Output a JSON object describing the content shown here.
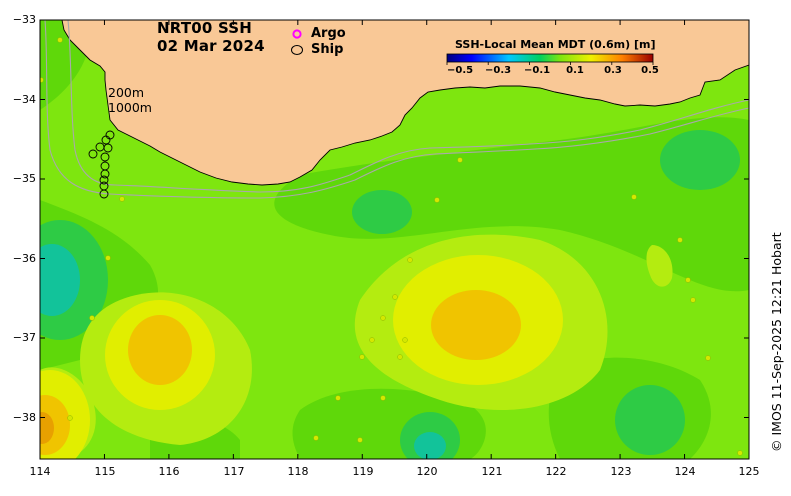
{
  "title": {
    "product": "NRT00 SSH",
    "date": "02 Mar 2024"
  },
  "legend": {
    "argo_symbol": "o",
    "argo_label": "Argo",
    "ship_label": "Ship"
  },
  "contours": {
    "label_200": "200m",
    "label_1000": "1000m"
  },
  "colorbar": {
    "title": "SSH-Local Mean MDT (0.6m) [m]",
    "ticks": [
      "−0.5",
      "−0.3",
      "−0.1",
      "0.1",
      "0.3",
      "0.5"
    ],
    "tick_values": [
      -0.5,
      -0.3,
      -0.1,
      0.1,
      0.3,
      0.5
    ],
    "range": [
      -0.5,
      0.5
    ]
  },
  "axes": {
    "x_ticks": [
      "114",
      "115",
      "116",
      "117",
      "118",
      "119",
      "120",
      "121",
      "122",
      "123",
      "124",
      "125"
    ],
    "y_ticks": [
      "−33",
      "−34",
      "−35",
      "−36",
      "−37",
      "−38"
    ],
    "lon_range": [
      114,
      125
    ],
    "lat_range": [
      -38.5,
      -33
    ]
  },
  "credit": "© IMOS 11-Sep-2025 12:21 Hobart",
  "colors": {
    "land": "#f9c896",
    "ocean_base": "#7ee60f",
    "argo": "#ff00ff",
    "contour": "#a9a9a9"
  }
}
